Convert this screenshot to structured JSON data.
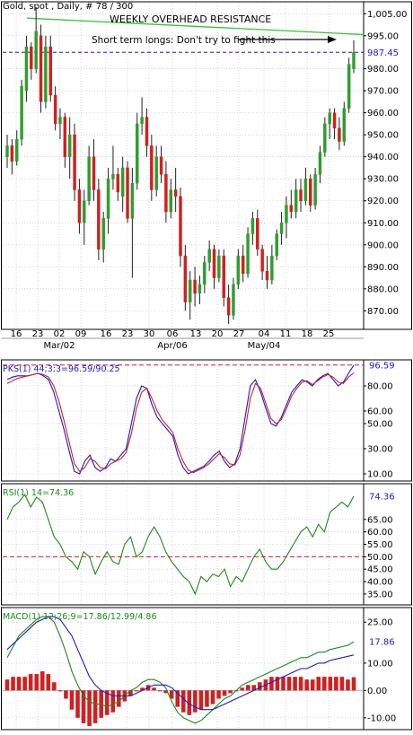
{
  "window": {
    "title": "Gold, spot , Daily, # 78 / 300"
  },
  "colors": {
    "up": "#2e9e2e",
    "down": "#d21f1f",
    "grid": "#bcbcbc",
    "blue": "#1a1acc",
    "red": "#d21f1f",
    "green": "#1c8a1c",
    "trend": "#35c435"
  },
  "x_axis": {
    "day_labels": [
      "16",
      "23",
      "02",
      "09",
      "16",
      "23",
      "30",
      "06",
      "13",
      "20",
      "27",
      "04",
      "11",
      "18",
      "25"
    ],
    "month_labels": [
      "Mar/02",
      "Apr/06",
      "May/04"
    ]
  },
  "chart_data": [
    {
      "type": "candlestick",
      "title": "Gold, spot , Daily, # 78 / 300",
      "ylim": [
        862,
        1010
      ],
      "yticks": [
        870,
        880,
        890,
        900,
        910,
        920,
        930,
        940,
        950,
        960,
        970,
        980,
        987.45,
        995,
        1005
      ],
      "ytick_labels": [
        "870.00",
        "880.00",
        "890.00",
        "900.00",
        "910.00",
        "920.00",
        "930.00",
        "940.00",
        "950.00",
        "960.00",
        "970.00",
        "980.00",
        "987.45",
        "995.00",
        "1,005.00"
      ],
      "current_price": 987.45,
      "current_price_label": "987.45",
      "annotations": {
        "resistance_title": "WEEKLY OVERHEAD RESISTANCE",
        "resistance_note": "Short term longs: Don't try to fight this"
      },
      "resistance_line": {
        "start": 1003,
        "end": 995.5
      },
      "candles": [
        {
          "o": 940,
          "h": 950,
          "l": 935,
          "c": 945
        },
        {
          "o": 945,
          "h": 948,
          "l": 932,
          "c": 938
        },
        {
          "o": 938,
          "h": 952,
          "l": 936,
          "c": 948
        },
        {
          "o": 948,
          "h": 975,
          "l": 945,
          "c": 972
        },
        {
          "o": 970,
          "h": 995,
          "l": 965,
          "c": 990
        },
        {
          "o": 990,
          "h": 992,
          "l": 975,
          "c": 980
        },
        {
          "o": 980,
          "h": 1008,
          "l": 978,
          "c": 997
        },
        {
          "o": 995,
          "h": 1000,
          "l": 960,
          "c": 965
        },
        {
          "o": 965,
          "h": 995,
          "l": 962,
          "c": 990
        },
        {
          "o": 990,
          "h": 995,
          "l": 965,
          "c": 968
        },
        {
          "o": 968,
          "h": 972,
          "l": 952,
          "c": 955
        },
        {
          "o": 955,
          "h": 962,
          "l": 948,
          "c": 958
        },
        {
          "o": 958,
          "h": 960,
          "l": 935,
          "c": 940
        },
        {
          "o": 940,
          "h": 958,
          "l": 930,
          "c": 950
        },
        {
          "o": 950,
          "h": 955,
          "l": 920,
          "c": 925
        },
        {
          "o": 925,
          "h": 930,
          "l": 905,
          "c": 910
        },
        {
          "o": 910,
          "h": 925,
          "l": 900,
          "c": 920
        },
        {
          "o": 920,
          "h": 945,
          "l": 918,
          "c": 940
        },
        {
          "o": 940,
          "h": 948,
          "l": 920,
          "c": 925
        },
        {
          "o": 925,
          "h": 930,
          "l": 893,
          "c": 898
        },
        {
          "o": 898,
          "h": 915,
          "l": 892,
          "c": 912
        },
        {
          "o": 912,
          "h": 935,
          "l": 905,
          "c": 930
        },
        {
          "o": 930,
          "h": 945,
          "l": 925,
          "c": 932
        },
        {
          "o": 932,
          "h": 935,
          "l": 920,
          "c": 924
        },
        {
          "o": 922,
          "h": 940,
          "l": 915,
          "c": 935
        },
        {
          "o": 935,
          "h": 938,
          "l": 910,
          "c": 912
        },
        {
          "o": 912,
          "h": 935,
          "l": 885,
          "c": 928
        },
        {
          "o": 928,
          "h": 960,
          "l": 925,
          "c": 955
        },
        {
          "o": 955,
          "h": 967,
          "l": 950,
          "c": 958
        },
        {
          "o": 958,
          "h": 962,
          "l": 940,
          "c": 945
        },
        {
          "o": 945,
          "h": 950,
          "l": 920,
          "c": 925
        },
        {
          "o": 925,
          "h": 945,
          "l": 922,
          "c": 940
        },
        {
          "o": 940,
          "h": 945,
          "l": 928,
          "c": 932
        },
        {
          "o": 932,
          "h": 938,
          "l": 910,
          "c": 915
        },
        {
          "o": 915,
          "h": 930,
          "l": 912,
          "c": 925
        },
        {
          "o": 925,
          "h": 935,
          "l": 915,
          "c": 922
        },
        {
          "o": 922,
          "h": 926,
          "l": 890,
          "c": 895
        },
        {
          "o": 895,
          "h": 900,
          "l": 870,
          "c": 874
        },
        {
          "o": 874,
          "h": 888,
          "l": 866,
          "c": 884
        },
        {
          "o": 884,
          "h": 890,
          "l": 872,
          "c": 878
        },
        {
          "o": 878,
          "h": 886,
          "l": 873,
          "c": 882
        },
        {
          "o": 882,
          "h": 895,
          "l": 878,
          "c": 892
        },
        {
          "o": 892,
          "h": 902,
          "l": 888,
          "c": 898
        },
        {
          "o": 898,
          "h": 900,
          "l": 880,
          "c": 885
        },
        {
          "o": 885,
          "h": 898,
          "l": 883,
          "c": 895
        },
        {
          "o": 895,
          "h": 898,
          "l": 872,
          "c": 876
        },
        {
          "o": 876,
          "h": 882,
          "l": 864,
          "c": 868
        },
        {
          "o": 868,
          "h": 885,
          "l": 866,
          "c": 882
        },
        {
          "o": 882,
          "h": 898,
          "l": 880,
          "c": 895
        },
        {
          "o": 895,
          "h": 900,
          "l": 883,
          "c": 887
        },
        {
          "o": 887,
          "h": 908,
          "l": 885,
          "c": 905
        },
        {
          "o": 905,
          "h": 915,
          "l": 900,
          "c": 912
        },
        {
          "o": 912,
          "h": 916,
          "l": 895,
          "c": 898
        },
        {
          "o": 898,
          "h": 900,
          "l": 884,
          "c": 888
        },
        {
          "o": 888,
          "h": 895,
          "l": 880,
          "c": 884
        },
        {
          "o": 884,
          "h": 900,
          "l": 882,
          "c": 895
        },
        {
          "o": 895,
          "h": 907,
          "l": 893,
          "c": 905
        },
        {
          "o": 905,
          "h": 915,
          "l": 900,
          "c": 910
        },
        {
          "o": 910,
          "h": 922,
          "l": 903,
          "c": 918
        },
        {
          "o": 918,
          "h": 925,
          "l": 912,
          "c": 915
        },
        {
          "o": 915,
          "h": 930,
          "l": 912,
          "c": 925
        },
        {
          "o": 925,
          "h": 930,
          "l": 915,
          "c": 920
        },
        {
          "o": 920,
          "h": 935,
          "l": 918,
          "c": 930
        },
        {
          "o": 930,
          "h": 932,
          "l": 915,
          "c": 918
        },
        {
          "o": 918,
          "h": 935,
          "l": 916,
          "c": 932
        },
        {
          "o": 932,
          "h": 945,
          "l": 928,
          "c": 942
        },
        {
          "o": 942,
          "h": 958,
          "l": 940,
          "c": 955
        },
        {
          "o": 955,
          "h": 962,
          "l": 948,
          "c": 960
        },
        {
          "o": 960,
          "h": 962,
          "l": 948,
          "c": 953
        },
        {
          "o": 953,
          "h": 958,
          "l": 943,
          "c": 947
        },
        {
          "o": 947,
          "h": 965,
          "l": 945,
          "c": 962
        },
        {
          "o": 962,
          "h": 985,
          "l": 960,
          "c": 982
        },
        {
          "o": 980,
          "h": 993,
          "l": 978,
          "c": 987.45
        }
      ]
    },
    {
      "type": "line",
      "title": "PKS(1) 44;3;3=96.59/90.25",
      "ylim": [
        5,
        100
      ],
      "yticks": [
        10,
        30,
        50,
        60,
        80
      ],
      "ytick_labels": [
        "10.00",
        "30.00",
        "50.00",
        "60.00",
        "80.00"
      ],
      "last_label": "96.59",
      "reference_value": 96.59,
      "series": [
        {
          "color": "#1a1acc",
          "values": [
            85,
            87,
            88,
            88,
            88,
            89,
            90,
            88,
            85,
            75,
            60,
            45,
            28,
            12,
            10,
            20,
            25,
            15,
            12,
            15,
            22,
            20,
            25,
            30,
            50,
            70,
            80,
            78,
            65,
            55,
            50,
            45,
            40,
            25,
            15,
            10,
            12,
            14,
            16,
            20,
            25,
            28,
            20,
            15,
            18,
            30,
            55,
            80,
            85,
            75,
            62,
            50,
            48,
            55,
            65,
            75,
            80,
            85,
            83,
            80,
            85,
            88,
            90,
            85,
            80,
            83,
            90,
            96.59
          ]
        },
        {
          "color": "#d21f1f",
          "values": [
            82,
            84,
            86,
            87,
            88,
            89,
            90,
            89,
            87,
            80,
            68,
            52,
            35,
            18,
            12,
            15,
            22,
            20,
            15,
            14,
            18,
            20,
            22,
            27,
            42,
            62,
            75,
            78,
            70,
            60,
            53,
            48,
            43,
            30,
            20,
            13,
            11,
            13,
            15,
            18,
            22,
            26,
            23,
            18,
            17,
            25,
            45,
            70,
            82,
            78,
            66,
            54,
            50,
            53,
            62,
            72,
            78,
            83,
            84,
            81,
            84,
            87,
            89,
            87,
            83,
            82,
            87,
            90.25
          ]
        }
      ]
    },
    {
      "type": "line",
      "title": "RSI(1) 14=74.36",
      "ylim": [
        31,
        79
      ],
      "yticks": [
        35,
        40,
        45,
        50,
        55,
        60,
        65
      ],
      "ytick_labels": [
        "35.00",
        "40.00",
        "45.00",
        "50.00",
        "55.00",
        "60.00",
        "65.00"
      ],
      "last_label": "74.36",
      "reference_value": 50,
      "series": [
        {
          "color": "#1c8a1c",
          "values": [
            65,
            70,
            72,
            75,
            70,
            74,
            72,
            65,
            58,
            55,
            50,
            48,
            45,
            52,
            50,
            43,
            48,
            52,
            48,
            47,
            55,
            58,
            50,
            52,
            58,
            62,
            58,
            52,
            48,
            45,
            42,
            40,
            35,
            42,
            40,
            43,
            42,
            45,
            38,
            42,
            40,
            45,
            50,
            53,
            48,
            45,
            45,
            48,
            52,
            56,
            60,
            62,
            58,
            63,
            60,
            68,
            70,
            72,
            70,
            74.36
          ]
        }
      ]
    },
    {
      "type": "bar",
      "title": "MACD(1) 12;26;9=17.86/12.99/4.86",
      "ylim": [
        -14,
        30
      ],
      "yticks": [
        -10,
        0,
        10,
        25
      ],
      "ytick_labels": [
        "-10.00",
        "0.00",
        "10.00",
        "25.00"
      ],
      "last_label": "17.86",
      "reference_value": 17.86,
      "histogram": [
        4,
        5,
        5,
        5,
        6,
        6,
        7,
        6,
        3,
        0,
        -3,
        -7,
        -10,
        -12,
        -13,
        -12,
        -10,
        -9,
        -8,
        -6,
        -4,
        -2,
        0,
        1,
        2,
        1,
        0,
        -1,
        -3,
        -6,
        -8,
        -9,
        -8,
        -7,
        -6,
        -5,
        -3,
        -2,
        -1,
        0,
        1,
        2,
        2,
        3,
        4,
        5,
        5,
        5,
        5,
        5,
        5,
        4,
        4,
        5,
        5,
        5,
        5,
        5,
        4,
        4.86
      ],
      "series": [
        {
          "color": "#1c8a1c",
          "values": [
            12,
            16,
            20,
            22,
            24,
            26,
            27,
            27,
            25,
            20,
            14,
            7,
            2,
            -2,
            -4,
            -5,
            -5,
            -6,
            -5,
            -4,
            -2,
            0,
            1,
            3,
            4,
            4,
            3,
            1,
            -4,
            -8,
            -10,
            -11,
            -12,
            -11,
            -9,
            -7,
            -5,
            -3,
            -2,
            0,
            2,
            3,
            4,
            5,
            6,
            7,
            8,
            9,
            10,
            11,
            12,
            12,
            13,
            14,
            14,
            15,
            15.5,
            16,
            16.5,
            17.86
          ]
        },
        {
          "color": "#1a1acc",
          "values": [
            15,
            17,
            19,
            21,
            23,
            25,
            26,
            27,
            27,
            26,
            23,
            20,
            15,
            10,
            5,
            2,
            0,
            -1,
            -2,
            -2,
            -2,
            -2,
            -1,
            0,
            1,
            2,
            2,
            2,
            1,
            -1,
            -3,
            -5,
            -6,
            -7,
            -7,
            -7,
            -6,
            -5,
            -4,
            -3,
            -2,
            -1,
            0,
            1,
            2,
            3,
            4,
            5,
            6,
            7,
            8,
            8,
            9,
            10,
            10,
            11,
            11.5,
            12,
            12.5,
            12.99
          ]
        }
      ]
    }
  ]
}
